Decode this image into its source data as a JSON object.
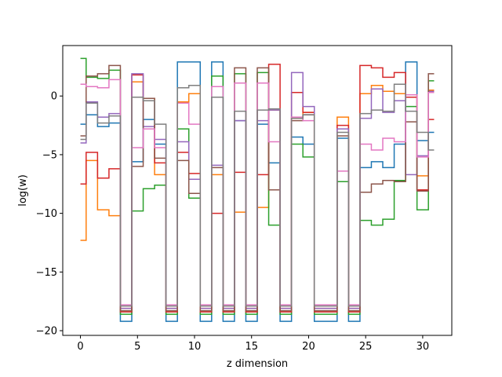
{
  "chart_data": {
    "type": "line",
    "drawstyle": "steps-mid",
    "title": "",
    "xlabel": "z dimension",
    "ylabel": "log(w)",
    "xlim": [
      -1.55,
      32.55
    ],
    "ylim": [
      -20.4,
      4.3
    ],
    "xticks": [
      0,
      5,
      10,
      15,
      20,
      25,
      30
    ],
    "yticks": [
      0,
      -5,
      -10,
      -15,
      -20
    ],
    "grid": false,
    "x": [
      0,
      1,
      2,
      3,
      4,
      5,
      6,
      7,
      8,
      9,
      10,
      11,
      12,
      13,
      14,
      15,
      16,
      17,
      18,
      19,
      20,
      21,
      22,
      23,
      24,
      25,
      26,
      27,
      28,
      29,
      30,
      31
    ],
    "series": [
      {
        "color": "#1f77b4",
        "values": [
          -2.4,
          -1.6,
          -2.6,
          -2.3,
          -19.2,
          -5.6,
          -2.0,
          -4.1,
          -19.2,
          2.9,
          2.9,
          -19.2,
          2.9,
          -19.2,
          -2.1,
          -19.2,
          -2.4,
          -5.7,
          -19.2,
          -3.5,
          -4.1,
          -19.2,
          -19.2,
          -3.6,
          -19.2,
          -6.1,
          -5.6,
          -6.1,
          -4.1,
          2.9,
          -3.8,
          -3.1
        ]
      },
      {
        "color": "#ff7f0e",
        "values": [
          -12.3,
          -5.5,
          -9.7,
          -10.2,
          -18.1,
          1.2,
          -0.2,
          -6.7,
          -18.1,
          -0.5,
          0.2,
          -18.1,
          -6.7,
          -18.1,
          -9.9,
          -18.1,
          -9.5,
          -1.2,
          -18.1,
          -1.9,
          -1.4,
          -18.1,
          -18.1,
          -1.8,
          -18.1,
          0.2,
          0.9,
          0.4,
          0.2,
          0.1,
          -6.8,
          0.5
        ]
      },
      {
        "color": "#2ca02c",
        "values": [
          3.2,
          1.6,
          1.5,
          2.2,
          -18.6,
          -9.8,
          -7.9,
          -7.6,
          -18.6,
          -2.8,
          -8.7,
          -18.6,
          1.7,
          -18.6,
          1.9,
          -18.6,
          2.0,
          -11.0,
          -18.6,
          -4.1,
          -5.2,
          -18.6,
          -18.6,
          -7.3,
          -18.6,
          -10.6,
          -11.0,
          -10.5,
          -7.2,
          -0.9,
          -9.7,
          1.3
        ]
      },
      {
        "color": "#d62728",
        "values": [
          -7.5,
          -4.8,
          -7.0,
          -6.2,
          -18.4,
          1.8,
          -0.4,
          -5.7,
          -18.4,
          -4.8,
          -6.6,
          -18.4,
          -10.0,
          -18.4,
          -6.5,
          -18.4,
          -6.7,
          2.7,
          -18.4,
          0.3,
          -1.4,
          -18.4,
          -18.4,
          -2.5,
          -18.4,
          2.6,
          2.4,
          1.6,
          2.0,
          -0.1,
          -8.0,
          -2.0
        ]
      },
      {
        "color": "#9467bd",
        "values": [
          -4.0,
          -0.5,
          -1.8,
          -1.5,
          -18.1,
          1.9,
          -2.6,
          -3.7,
          -18.1,
          -3.9,
          -7.1,
          -18.1,
          -5.9,
          -18.1,
          -2.1,
          -18.1,
          -2.1,
          -1.2,
          -18.1,
          2.0,
          -0.9,
          -18.1,
          -18.1,
          -2.8,
          -18.1,
          -1.9,
          0.6,
          -1.4,
          -0.4,
          -6.7,
          -5.1,
          0.4
        ]
      },
      {
        "color": "#8c564b",
        "values": [
          -3.4,
          1.7,
          1.9,
          2.6,
          -18.3,
          -6.0,
          -0.2,
          -5.3,
          -18.3,
          -5.5,
          -8.3,
          -18.3,
          -6.1,
          -18.3,
          2.4,
          -18.3,
          2.4,
          -8.0,
          -18.3,
          -2.1,
          -1.6,
          -18.3,
          -18.3,
          -3.4,
          -18.3,
          -8.2,
          -7.5,
          -7.2,
          -7.3,
          -2.2,
          -8.1,
          1.9
        ]
      },
      {
        "color": "#e377c2",
        "values": [
          1.0,
          0.8,
          0.7,
          1.4,
          -17.8,
          -4.4,
          -2.8,
          -4.4,
          -17.8,
          -0.6,
          -2.4,
          -17.8,
          0.8,
          -17.8,
          1.1,
          -17.8,
          1.1,
          -3.9,
          -17.8,
          -1.8,
          -2.1,
          -17.8,
          -17.8,
          -6.4,
          -17.8,
          -4.1,
          -4.6,
          -3.6,
          -3.9,
          0.1,
          -5.2,
          0.3
        ]
      },
      {
        "color": "#7f7f7f",
        "values": [
          -3.7,
          -0.6,
          -2.3,
          -1.7,
          -17.9,
          -0.1,
          -0.4,
          -2.4,
          -17.9,
          0.7,
          0.9,
          -17.9,
          -0.1,
          -17.9,
          -1.3,
          -17.9,
          -1.2,
          -1.1,
          -17.9,
          -1.9,
          -1.6,
          -17.9,
          -17.9,
          -3.1,
          -17.9,
          -1.5,
          -1.2,
          -1.3,
          1.0,
          -1.3,
          -3.1,
          -4.6
        ]
      }
    ]
  }
}
